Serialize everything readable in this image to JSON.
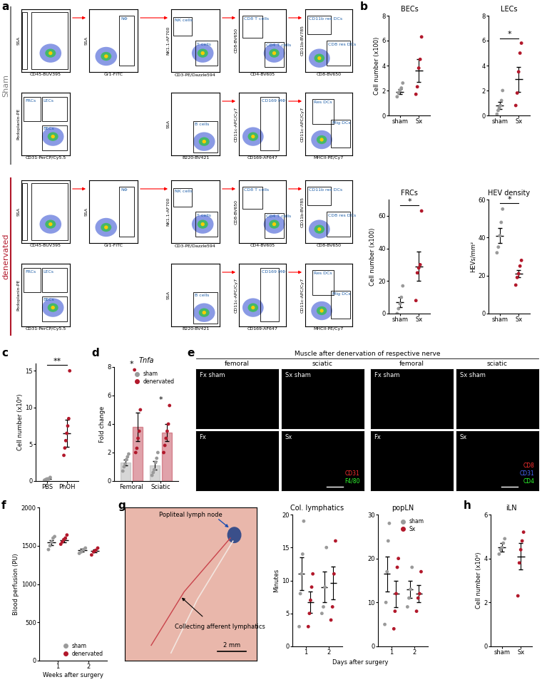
{
  "panel_labels": [
    "a",
    "b",
    "c",
    "d",
    "e",
    "f",
    "g",
    "h"
  ],
  "flow_cytometry": {
    "rows": [
      {
        "label": "Sham",
        "color": "#808080",
        "plots": [
          {
            "x_label": "CD45-BUV395",
            "y_label": "SSA",
            "gates": []
          },
          {
            "x_label": "Gr1-FITC",
            "y_label": "SSA",
            "gates": [
              "NΦ"
            ]
          },
          {
            "x_label": "CD3-PE/Dazzle594",
            "y_label": "NK1.1-AF700",
            "gates": [
              "NK cells",
              "T cells"
            ]
          },
          {
            "x_label": "CD4-BV605",
            "y_label": "CD8-BV650",
            "gates": [
              "CD8 T cells",
              "CD4 T cells"
            ]
          },
          {
            "x_label": "CD8-BV650",
            "y_label": "CD11b-BV785",
            "gates": [
              "CD11b res DCs",
              "CD8 res DCs"
            ]
          },
          {
            "x_label": "CD31-PerCP/Cy5.5",
            "y_label": "Podoplanin-PE",
            "gates": [
              "FRCs",
              "LECs",
              "BECs"
            ]
          },
          {
            "x_label": "B220-BV421",
            "y_label": "SSA",
            "gates": [
              "B cells"
            ]
          },
          {
            "x_label": "CD169-AF647",
            "y_label": "CD11c-APC/Cy7",
            "gates": [
              "CD169 MΦ"
            ]
          },
          {
            "x_label": "MHCII-PE/Cy7",
            "y_label": "CD11c-APC/Cy7",
            "gates": [
              "Res DCs",
              "Mig DCs"
            ]
          }
        ]
      },
      {
        "label": "denervated",
        "color": "#b2182b",
        "plots": [
          {
            "x_label": "CD45-BUV395",
            "y_label": "SSA",
            "gates": []
          },
          {
            "x_label": "Gr1-FITC",
            "y_label": "SSA",
            "gates": [
              "NΦ"
            ]
          },
          {
            "x_label": "CD3-PE/Dazzle594",
            "y_label": "NK1.1-AF700",
            "gates": [
              "NK cells",
              "T cells"
            ]
          },
          {
            "x_label": "CD4-BV605",
            "y_label": "CD8-BV650",
            "gates": [
              "CD8 T cells",
              "CD4 T cells"
            ]
          },
          {
            "x_label": "CD8-BV650",
            "y_label": "CD11b-BV785",
            "gates": [
              "CD11b res DCs",
              "CD8 res DCs"
            ]
          },
          {
            "x_label": "CD31-PerCP/Cy5.5",
            "y_label": "Podoplanin-PE",
            "gates": [
              "FRCs",
              "LECs",
              "BECs"
            ]
          },
          {
            "x_label": "B220-BV421",
            "y_label": "SSA",
            "gates": [
              "B cells"
            ]
          },
          {
            "x_label": "CD169-AF647",
            "y_label": "CD11c-APC/Cy7",
            "gates": [
              "CD169 MΦ"
            ]
          },
          {
            "x_label": "MHCII-PE/Cy7",
            "y_label": "CD11c-APC/Cy7",
            "gates": [
              "Res DCs",
              "Mig DCs"
            ]
          }
        ]
      }
    ]
  },
  "microscopy": {
    "title": "Muscle after denervation of respective nerve",
    "columns": [
      "femoral",
      "sciatic",
      "femoral",
      "sciatic"
    ],
    "rows": [
      [
        "Fx sham",
        "Sx sham",
        "Fx sham",
        "Sx sham"
      ],
      [
        "Fx",
        "Sx",
        "Fx",
        "Sx"
      ]
    ],
    "stains": [
      [
        {
          "text": "CD31",
          "color": "#ff3030"
        },
        {
          "text": "F4/80",
          "color": "#30ff30"
        }
      ],
      [
        {
          "text": "CD8",
          "color": "#ff3030"
        },
        {
          "text": "CD31",
          "color": "#4a6bff"
        },
        {
          "text": "CD4",
          "color": "#30ff30"
        }
      ]
    ]
  },
  "photo": {
    "labels": [
      "Popliteal lymph node",
      "Collecting afferent lymphatics"
    ],
    "scale_bar": "2 mm"
  },
  "chart_data": [
    {
      "type": "dot",
      "title": "BECs",
      "y_label": "Cell number (x100)",
      "categories": [
        "sham",
        "Sx"
      ],
      "colors": [
        "#9a9a9a",
        "#b2182b"
      ],
      "values": [
        [
          1.5,
          1.8,
          2.0,
          2.2,
          2.6
        ],
        [
          1.7,
          2.3,
          3.8,
          4.5,
          6.3
        ]
      ],
      "mean": [
        1.9,
        3.6
      ],
      "sem": [
        0.2,
        0.9
      ],
      "ylim": [
        0,
        8
      ],
      "yticks": [
        0,
        2,
        4,
        6,
        8
      ]
    },
    {
      "type": "dot",
      "title": "LECs",
      "categories": [
        "sham",
        "Sx"
      ],
      "colors": [
        "#9a9a9a",
        "#b2182b"
      ],
      "values": [
        [
          0.1,
          0.4,
          0.6,
          0.8,
          1.2,
          2.0
        ],
        [
          0.8,
          1.8,
          3.5,
          5.0,
          5.8
        ]
      ],
      "mean": [
        0.8,
        2.9
      ],
      "sem": [
        0.3,
        1.0
      ],
      "ylim": [
        0,
        8
      ],
      "yticks": [
        0,
        2,
        4,
        6,
        8
      ],
      "significance": [
        {
          "between": [
            "sham",
            "Sx"
          ],
          "label": "*"
        }
      ]
    },
    {
      "type": "dot",
      "title": "FRCs",
      "y_label": "Cell number (x100)",
      "categories": [
        "sham",
        "Sx"
      ],
      "colors": [
        "#9a9a9a",
        "#b2182b"
      ],
      "values": [
        [
          0,
          3,
          6,
          10,
          17
        ],
        [
          8,
          25,
          28,
          30,
          63
        ]
      ],
      "mean": [
        7,
        29
      ],
      "sem": [
        3,
        9
      ],
      "ylim": [
        0,
        70
      ],
      "yticks": [
        0,
        20,
        40,
        60
      ],
      "significance": [
        {
          "between": [
            "sham",
            "Sx"
          ],
          "label": "*"
        }
      ]
    },
    {
      "type": "dot",
      "title": "HEV density",
      "y_label": "HEVs/mm²",
      "categories": [
        "sham",
        "Sx"
      ],
      "colors": [
        "#9a9a9a",
        "#b2182b"
      ],
      "values": [
        [
          32,
          35,
          41,
          48,
          55
        ],
        [
          15,
          19,
          21,
          25,
          28
        ]
      ],
      "mean": [
        41,
        21
      ],
      "sem": [
        4,
        2
      ],
      "ylim": [
        0,
        60
      ],
      "yticks": [
        0,
        20,
        40,
        60
      ],
      "significance": [
        {
          "between": [
            "sham",
            "Sx"
          ],
          "label": "*"
        }
      ]
    },
    {
      "type": "dot",
      "y_label": "Cell number (x10⁶)",
      "categories": [
        "PBS",
        "PhOH"
      ],
      "colors": [
        "#9a9a9a",
        "#b2182b"
      ],
      "values": [
        [
          0.1,
          0.2,
          0.3,
          0.3,
          0.5
        ],
        [
          3.5,
          4.5,
          5.5,
          6.5,
          7.5,
          8.5,
          15
        ]
      ],
      "mean": [
        0.3,
        6.5
      ],
      "sem": [
        0.1,
        1.8
      ],
      "ylim": [
        0,
        16
      ],
      "yticks": [
        0,
        5,
        10,
        15
      ],
      "significance": [
        {
          "between": [
            "PBS",
            "PhOH"
          ],
          "label": "**"
        }
      ]
    },
    {
      "type": "bar",
      "title": "Tnfa",
      "y_label": "Fold change",
      "categories": [
        "Femoral",
        "Sciatic"
      ],
      "series": [
        {
          "name": "sham",
          "color": "#9a9a9a",
          "values": [
            [
              0.7,
              1.0,
              1.2,
              1.5,
              1.7,
              1.9
            ],
            [
              0.4,
              0.6,
              0.8,
              1.3,
              1.6,
              2.0
            ]
          ],
          "mean": [
            1.3,
            1.1
          ],
          "sem": [
            0.2,
            0.3
          ]
        },
        {
          "name": "denervated",
          "color": "#b2182b",
          "values": [
            [
              7.8,
              2.0,
              2.3,
              3.0,
              3.5,
              5.0
            ],
            [
              2.0,
              2.5,
              3.0,
              3.5,
              4.0,
              5.3
            ]
          ],
          "mean": [
            3.8,
            3.4
          ],
          "sem": [
            1.0,
            0.6
          ]
        }
      ],
      "ylim": [
        0,
        8
      ],
      "yticks": [
        0,
        2,
        4,
        6,
        8
      ],
      "legend": "upper right",
      "significance": [
        {
          "category": "Femoral",
          "label": "*"
        },
        {
          "category": "Sciatic",
          "label": "*"
        }
      ]
    },
    {
      "type": "dot",
      "y_label": "Blood perfusion (PU)",
      "x_label": "Weeks after surgery",
      "categories": [
        "1",
        "2"
      ],
      "series": [
        {
          "name": "sham",
          "color": "#9a9a9a",
          "values": [
            [
              1450,
              1500,
              1550,
              1600,
              1620
            ],
            [
              1400,
              1420,
              1450,
              1470
            ]
          ],
          "mean": [
            1540,
            1440
          ],
          "sem": [
            30,
            20
          ]
        },
        {
          "name": "denervated",
          "color": "#b2182b",
          "values": [
            [
              1520,
              1550,
              1580,
              1600,
              1640
            ],
            [
              1380,
              1420,
              1440,
              1470
            ]
          ],
          "mean": [
            1570,
            1430
          ],
          "sem": [
            25,
            20
          ]
        }
      ],
      "ylim": [
        0,
        2000
      ],
      "yticks": [
        0,
        500,
        1000,
        1500,
        2000
      ],
      "legend": "lower right"
    },
    {
      "type": "dot",
      "title": "Col. lymphatics",
      "y_label": "Minutes",
      "x_label": "Days after surgery",
      "categories": [
        "1",
        "2"
      ],
      "series": [
        {
          "name": "sham",
          "color": "#9a9a9a",
          "values": [
            [
              3,
              8,
              11,
              14,
              19
            ],
            [
              5,
              6,
              9,
              15
            ]
          ],
          "mean": [
            11,
            9
          ],
          "sem": [
            2.5,
            2.3
          ]
        },
        {
          "name": "Sx",
          "color": "#b2182b",
          "values": [
            [
              3,
              5,
              7,
              9,
              11
            ],
            [
              4,
              6,
              11,
              16
            ]
          ],
          "mean": [
            6.7,
            9.6
          ],
          "sem": [
            1.6,
            2.5
          ]
        }
      ],
      "ylim": [
        0,
        20
      ],
      "yticks": [
        0,
        5,
        10,
        15,
        20
      ]
    },
    {
      "type": "dot",
      "title": "popLN",
      "categories": [
        "1",
        "2"
      ],
      "series": [
        {
          "name": "sham",
          "color": "#9a9a9a",
          "values": [
            [
              5,
              10,
              17,
              24,
              28
            ],
            [
              9,
              11,
              13,
              18
            ]
          ],
          "mean": [
            16.5,
            13
          ],
          "sem": [
            4,
            2
          ]
        },
        {
          "name": "Sx",
          "color": "#b2182b",
          "values": [
            [
              4,
              8,
              12,
              18,
              20
            ],
            [
              8,
              11,
              12,
              17
            ]
          ],
          "mean": [
            12,
            12
          ],
          "sem": [
            3,
            2
          ]
        }
      ],
      "ylim": [
        0,
        30
      ],
      "yticks": [
        0,
        10,
        20,
        30
      ],
      "legend": "upper right"
    },
    {
      "type": "dot",
      "title": "iLN",
      "y_label": "Cell number (x10⁶)",
      "categories": [
        "sham",
        "Sx"
      ],
      "colors": [
        "#9a9a9a",
        "#b2182b"
      ],
      "values": [
        [
          4.2,
          4.4,
          4.5,
          4.7,
          4.9
        ],
        [
          2.3,
          3.8,
          4.4,
          4.8,
          5.2
        ]
      ],
      "mean": [
        4.5,
        4.1
      ],
      "sem": [
        0.2,
        0.6
      ],
      "ylim": [
        0,
        6
      ],
      "yticks": [
        0,
        2,
        4,
        6
      ]
    }
  ]
}
